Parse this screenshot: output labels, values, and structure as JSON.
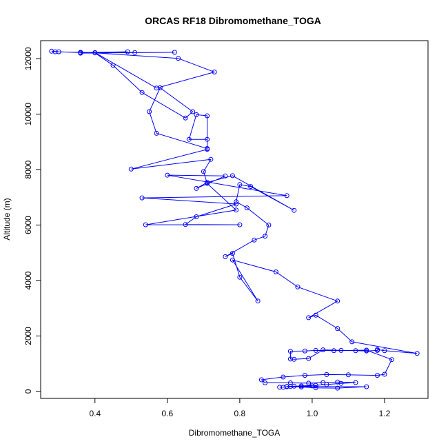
{
  "chart_data": {
    "type": "scatter",
    "title": "ORCAS RF18 Dibromomethane_TOGA",
    "xlabel": "Dibromomethane_TOGA",
    "ylabel": "Altitude (m)",
    "xlim": [
      0.25,
      1.32
    ],
    "ylim": [
      -250,
      12650
    ],
    "x_ticks": [
      0.4,
      0.6,
      0.8,
      1.0,
      1.2
    ],
    "x_tick_labels": [
      "0.4",
      "0.6",
      "0.8",
      "1.0",
      "1.2"
    ],
    "y_ticks": [
      0,
      2000,
      4000,
      6000,
      8000,
      10000,
      12000
    ],
    "y_tick_labels": [
      "0",
      "2000",
      "4000",
      "6000",
      "8000",
      "10000",
      "12000"
    ],
    "grid": false,
    "legend": "none",
    "series": [
      {
        "color": "#0000ff",
        "marker": "open-circle",
        "connected": true,
        "points": [
          [
            0.92,
            150
          ],
          [
            0.94,
            180
          ],
          [
            0.97,
            160
          ],
          [
            1.01,
            130
          ],
          [
            1.07,
            120
          ],
          [
            1.15,
            170
          ],
          [
            0.93,
            180
          ],
          [
            0.95,
            190
          ],
          [
            1.0,
            200
          ],
          [
            0.91,
            150
          ],
          [
            0.93,
            170
          ],
          [
            0.97,
            200
          ],
          [
            1.01,
            220
          ],
          [
            1.04,
            250
          ],
          [
            1.08,
            290
          ],
          [
            1.12,
            320
          ],
          [
            1.07,
            340
          ],
          [
            1.03,
            320
          ],
          [
            0.99,
            300
          ],
          [
            0.94,
            310
          ],
          [
            0.87,
            310
          ],
          [
            0.86,
            420
          ],
          [
            0.92,
            520
          ],
          [
            0.98,
            580
          ],
          [
            1.04,
            610
          ],
          [
            1.1,
            600
          ],
          [
            1.18,
            580
          ],
          [
            1.2,
            620
          ],
          [
            1.22,
            1150
          ],
          [
            1.15,
            1490
          ],
          [
            1.06,
            1470
          ],
          [
            1.01,
            1480
          ],
          [
            0.98,
            1460
          ],
          [
            0.94,
            1450
          ],
          [
            0.94,
            1170
          ],
          [
            0.95,
            1160
          ],
          [
            0.99,
            1190
          ],
          [
            1.03,
            1500
          ],
          [
            1.08,
            1480
          ],
          [
            1.12,
            1470
          ],
          [
            1.15,
            1460
          ],
          [
            1.18,
            1480
          ],
          [
            1.18,
            1510
          ],
          [
            1.2,
            1470
          ],
          [
            1.29,
            1370
          ],
          [
            1.11,
            1790
          ],
          [
            1.07,
            2270
          ],
          [
            1.01,
            2750
          ],
          [
            0.99,
            2660
          ],
          [
            1.07,
            3260
          ],
          [
            0.96,
            3770
          ],
          [
            0.9,
            4310
          ],
          [
            0.78,
            4740
          ],
          [
            0.85,
            3260
          ],
          [
            0.8,
            4120
          ],
          [
            0.78,
            4980
          ],
          [
            0.76,
            4860
          ],
          [
            0.84,
            5460
          ],
          [
            0.87,
            5600
          ],
          [
            0.88,
            6000
          ],
          [
            0.82,
            6620
          ],
          [
            0.79,
            6840
          ],
          [
            0.8,
            7460
          ],
          [
            0.83,
            7390
          ],
          [
            0.95,
            6530
          ],
          [
            0.78,
            7780
          ],
          [
            0.71,
            7540
          ],
          [
            0.68,
            7320
          ],
          [
            0.76,
            7770
          ],
          [
            0.6,
            7800
          ],
          [
            0.93,
            7060
          ],
          [
            0.53,
            6980
          ],
          [
            0.79,
            6760
          ],
          [
            0.68,
            6300
          ],
          [
            0.65,
            6020
          ],
          [
            0.8,
            6010
          ],
          [
            0.54,
            6010
          ],
          [
            0.79,
            6540
          ],
          [
            0.71,
            7500
          ],
          [
            0.7,
            7930
          ],
          [
            0.72,
            8370
          ],
          [
            0.5,
            8020
          ],
          [
            0.71,
            8730
          ],
          [
            0.71,
            9090
          ],
          [
            0.66,
            9090
          ],
          [
            0.68,
            9980
          ],
          [
            0.71,
            9940
          ],
          [
            0.71,
            8760
          ],
          [
            0.57,
            9310
          ],
          [
            0.55,
            10090
          ],
          [
            0.58,
            10950
          ],
          [
            0.67,
            10090
          ],
          [
            0.65,
            9860
          ],
          [
            0.53,
            10780
          ],
          [
            0.45,
            11760
          ],
          [
            0.4,
            12210
          ],
          [
            0.63,
            12010
          ],
          [
            0.73,
            11520
          ],
          [
            0.57,
            10940
          ],
          [
            0.4,
            12220
          ],
          [
            0.36,
            12230
          ],
          [
            0.29,
            12250
          ],
          [
            0.28,
            12270
          ],
          [
            0.3,
            12250
          ],
          [
            0.36,
            12220
          ],
          [
            0.49,
            12250
          ],
          [
            0.36,
            12220
          ],
          [
            0.51,
            12220
          ],
          [
            0.62,
            12230
          ],
          [
            0.36,
            12200
          ]
        ]
      }
    ]
  }
}
